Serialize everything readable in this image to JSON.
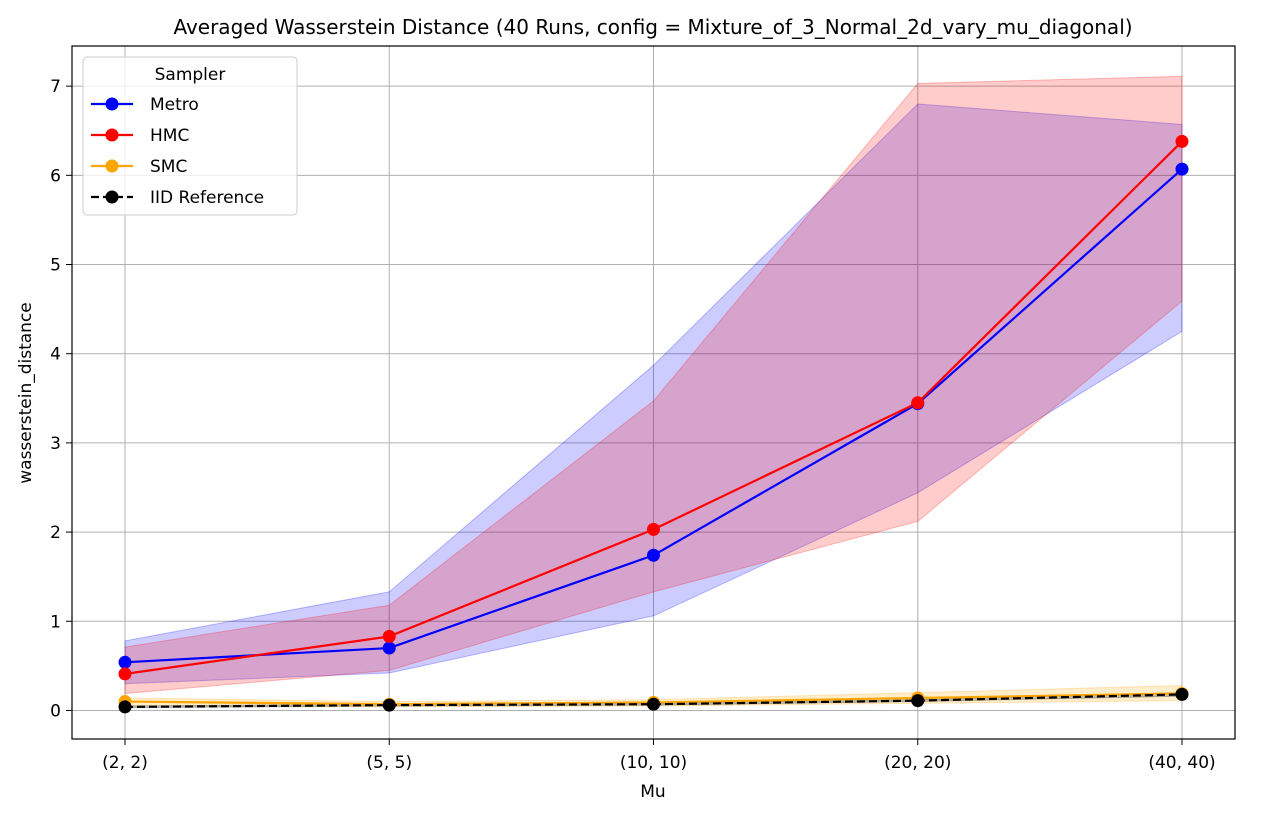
{
  "chart_data": {
    "type": "line",
    "title": "Averaged Wasserstein Distance (40 Runs, config = Mixture_of_3_Normal_2d_vary_mu_diagonal)",
    "xlabel": "Mu",
    "ylabel": "wasserstein_distance",
    "categories": [
      "(2, 2)",
      "(5, 5)",
      "(10, 10)",
      "(20, 20)",
      "(40, 40)"
    ],
    "ylim": [
      -0.32,
      7.45
    ],
    "yticks": [
      0,
      1,
      2,
      3,
      4,
      5,
      6,
      7
    ],
    "grid": true,
    "legend": {
      "title": "Sampler",
      "position": "top-left"
    },
    "series": [
      {
        "name": "Metro",
        "color": "#0000ff",
        "dashed": false,
        "values": [
          0.54,
          0.7,
          1.74,
          3.44,
          6.07
        ],
        "lower": [
          0.3,
          0.42,
          1.06,
          2.44,
          4.25
        ],
        "upper": [
          0.78,
          1.33,
          3.87,
          6.8,
          6.57
        ]
      },
      {
        "name": "HMC",
        "color": "#ff0000",
        "dashed": false,
        "values": [
          0.41,
          0.83,
          2.03,
          3.45,
          6.38
        ],
        "lower": [
          0.19,
          0.45,
          1.33,
          2.12,
          4.59
        ],
        "upper": [
          0.71,
          1.18,
          3.47,
          7.03,
          7.11
        ]
      },
      {
        "name": "SMC",
        "color": "#ffa500",
        "dashed": false,
        "values": [
          0.1,
          0.07,
          0.09,
          0.14,
          0.19
        ],
        "lower": [
          0.05,
          0.04,
          0.05,
          0.08,
          0.11
        ],
        "upper": [
          0.14,
          0.1,
          0.12,
          0.2,
          0.28
        ]
      },
      {
        "name": "IID Reference",
        "color": "#000000",
        "dashed": true,
        "values": [
          0.04,
          0.06,
          0.07,
          0.11,
          0.18
        ],
        "lower": [
          0.03,
          0.05,
          0.06,
          0.1,
          0.16
        ],
        "upper": [
          0.05,
          0.07,
          0.08,
          0.12,
          0.2
        ]
      }
    ]
  }
}
